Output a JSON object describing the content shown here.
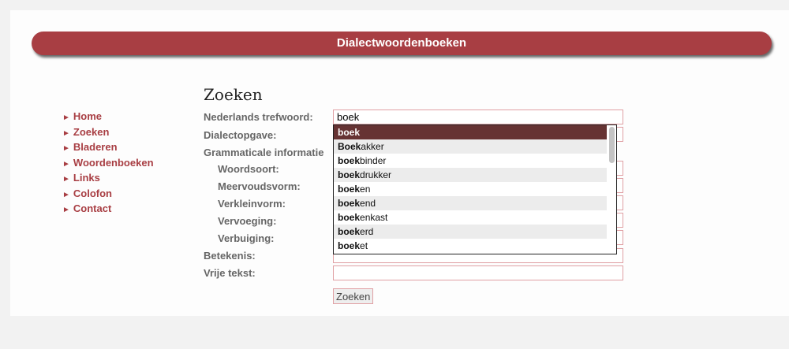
{
  "header": {
    "title": "Dialectwoordenboeken"
  },
  "nav": {
    "items": [
      {
        "label": "Home"
      },
      {
        "label": "Zoeken"
      },
      {
        "label": "Bladeren"
      },
      {
        "label": "Woordenboeken"
      },
      {
        "label": "Links"
      },
      {
        "label": "Colofon"
      },
      {
        "label": "Contact"
      }
    ],
    "bullet": "►"
  },
  "main": {
    "title": "Zoeken",
    "labels": {
      "trefwoord": "Nederlands trefwoord:",
      "dialect": "Dialectopgave:",
      "gram": "Grammaticale informatie",
      "woordsoort": "Woordsoort:",
      "meervoud": "Meervoudsvorm:",
      "verklein": "Verkleinvorm:",
      "vervoeging": "Vervoeging:",
      "verbuiging": "Verbuiging:",
      "betekenis": "Betekenis:",
      "vrij": "Vrije tekst:"
    },
    "trefwoord_value": "boek",
    "submit_label": "Zoeken"
  },
  "autocomplete": {
    "match": "boek",
    "items": [
      {
        "bold": "boek",
        "rest": ""
      },
      {
        "bold": "Boek",
        "rest": "akker"
      },
      {
        "bold": "boek",
        "rest": "binder"
      },
      {
        "bold": "boek",
        "rest": "drukker"
      },
      {
        "bold": "boek",
        "rest": "en"
      },
      {
        "bold": "boek",
        "rest": "end"
      },
      {
        "bold": "boek",
        "rest": "enkast"
      },
      {
        "bold": "boek",
        "rest": "erd"
      },
      {
        "bold": "boek",
        "rest": "et"
      }
    ]
  },
  "colors": {
    "accent": "#a83e43",
    "selected": "#663333"
  }
}
